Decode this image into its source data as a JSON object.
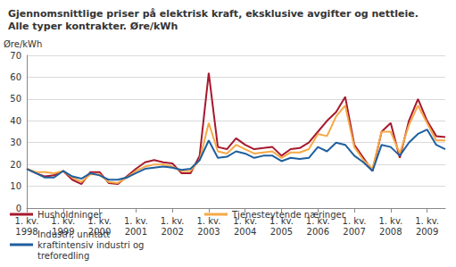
{
  "chart_data": {
    "type": "line",
    "title": "Gjennomsnittlige priser på elektrisk kraft, eksklusive avgifter og nettleie. Alle typer kontrakter. Øre/kWh",
    "y_label": "Øre/kWh",
    "categories": [
      "1. kv. 1998",
      null,
      null,
      null,
      "1. kv. 1999",
      null,
      null,
      null,
      "1. kv. 2000",
      null,
      null,
      null,
      "1. kv. 2001",
      null,
      null,
      null,
      "1. kv. 2002",
      null,
      null,
      null,
      "1. kv. 2003",
      null,
      null,
      null,
      "1. kv. 2004",
      null,
      null,
      null,
      "1. kv. 2005",
      null,
      null,
      null,
      "1. kv. 2006",
      null,
      null,
      null,
      "1. kv. 2007",
      null,
      null,
      null,
      "1. kv. 2008",
      null,
      null,
      null,
      "1. kv. 2009",
      null,
      null
    ],
    "series": [
      {
        "name": "Husholdninger",
        "color": "#a6192e",
        "values": [
          18,
          16,
          14.5,
          15,
          17,
          13,
          11,
          16.5,
          16.5,
          11.5,
          11,
          14.5,
          18,
          21,
          22,
          21,
          20.5,
          16,
          16,
          24,
          62,
          28,
          27,
          32,
          29,
          27,
          27.5,
          28,
          24,
          27,
          27.5,
          30,
          35,
          40,
          44,
          51,
          29,
          23,
          17,
          35,
          39,
          23,
          40,
          50,
          40,
          33,
          32.5
        ]
      },
      {
        "name": "Tjenesteytende næringer",
        "color": "#f7a845",
        "values": [
          18,
          16.5,
          16.5,
          16,
          17,
          14,
          12,
          15.5,
          15.5,
          12,
          11.5,
          14,
          17,
          19,
          20,
          20,
          19,
          17,
          17,
          22,
          39,
          26,
          25,
          29,
          27,
          25,
          25.5,
          26,
          23,
          25.5,
          25.5,
          27,
          34,
          33,
          42,
          47,
          28,
          22,
          18,
          35,
          35,
          25,
          38,
          47,
          39,
          31,
          31
        ]
      },
      {
        "name": "Industri, unntatt kraftintensiv industri og treforedling",
        "color": "#1f5f9e",
        "values": [
          18,
          16,
          14,
          14,
          17,
          14.5,
          13.5,
          16,
          15,
          13,
          13,
          14,
          16,
          18,
          18.5,
          19,
          18.5,
          17.5,
          18,
          22,
          31,
          23,
          23.5,
          26,
          25,
          23,
          24,
          24,
          21.5,
          23,
          22.5,
          23,
          28,
          26,
          30,
          29,
          24,
          21,
          17,
          29,
          28,
          24,
          30,
          34,
          36,
          29,
          27
        ]
      }
    ],
    "ylim": [
      0,
      70
    ],
    "yticks": [
      0,
      10,
      20,
      30,
      40,
      50,
      60,
      70
    ],
    "grid": true,
    "legend": "bottom"
  }
}
